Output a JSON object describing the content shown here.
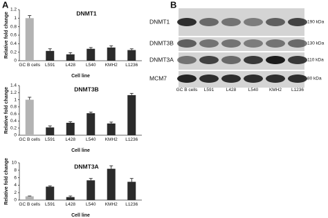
{
  "panel_labels": [
    "A",
    "B"
  ],
  "chart_data": [
    {
      "type": "bar",
      "title": "DNMT1",
      "y_label": "Relative fold change",
      "x_label": "Cell line",
      "categories": [
        "GC B cells",
        "L591",
        "L428",
        "L540",
        "KMH2",
        "L1236"
      ],
      "values": [
        1.0,
        0.23,
        0.15,
        0.28,
        0.31,
        0.25
      ],
      "errors": [
        0.06,
        0.05,
        0.04,
        0.03,
        0.04,
        0.03
      ],
      "colors": [
        "#b3b3b3",
        "#2b2b2b",
        "#2b2b2b",
        "#2b2b2b",
        "#2b2b2b",
        "#2b2b2b"
      ],
      "ylim": [
        0,
        1.2
      ],
      "yticks": [
        0,
        0.2,
        0.4,
        0.6,
        0.8,
        1,
        1.2
      ]
    },
    {
      "type": "bar",
      "title": "DNMT3B",
      "y_label": "Relative fold change",
      "x_label": "Cell line",
      "categories": [
        "GC B cells",
        "L591",
        "L428",
        "L540",
        "KMH2",
        "L1236"
      ],
      "values": [
        1.0,
        0.22,
        0.35,
        0.62,
        0.33,
        1.13
      ],
      "errors": [
        0.07,
        0.04,
        0.03,
        0.03,
        0.04,
        0.05
      ],
      "colors": [
        "#b3b3b3",
        "#2b2b2b",
        "#2b2b2b",
        "#2b2b2b",
        "#2b2b2b",
        "#2b2b2b"
      ],
      "ylim": [
        0,
        1.4
      ],
      "yticks": [
        0,
        0.2,
        0.4,
        0.6,
        0.8,
        1,
        1.2,
        1.4
      ]
    },
    {
      "type": "bar",
      "title": "DNMT3A",
      "y_label": "Relative fold change",
      "x_label": "Cell line",
      "categories": [
        "GC B cells",
        "L591",
        "L428",
        "L540",
        "KMH2",
        "L1236"
      ],
      "values": [
        1.0,
        3.6,
        0.8,
        5.3,
        8.4,
        4.9
      ],
      "errors": [
        0.1,
        0.2,
        0.3,
        0.5,
        0.8,
        0.9
      ],
      "colors": [
        "#b3b3b3",
        "#2b2b2b",
        "#2b2b2b",
        "#2b2b2b",
        "#2b2b2b",
        "#2b2b2b"
      ],
      "ylim": [
        0,
        10
      ],
      "yticks": [
        0,
        2,
        4,
        6,
        8,
        10
      ]
    }
  ],
  "blot": {
    "rows": [
      {
        "label": "DNMT1",
        "kda": "190 kDa"
      },
      {
        "label": "DNMT3B",
        "kda": "130 kDa"
      },
      {
        "label": "DNMT3A",
        "kda": "110 kDa"
      },
      {
        "label": "MCM7",
        "kda": "80 kDa"
      }
    ],
    "lanes": [
      "GC B cells",
      "L591",
      "L428",
      "L540",
      "KMH2",
      "L1236"
    ]
  }
}
